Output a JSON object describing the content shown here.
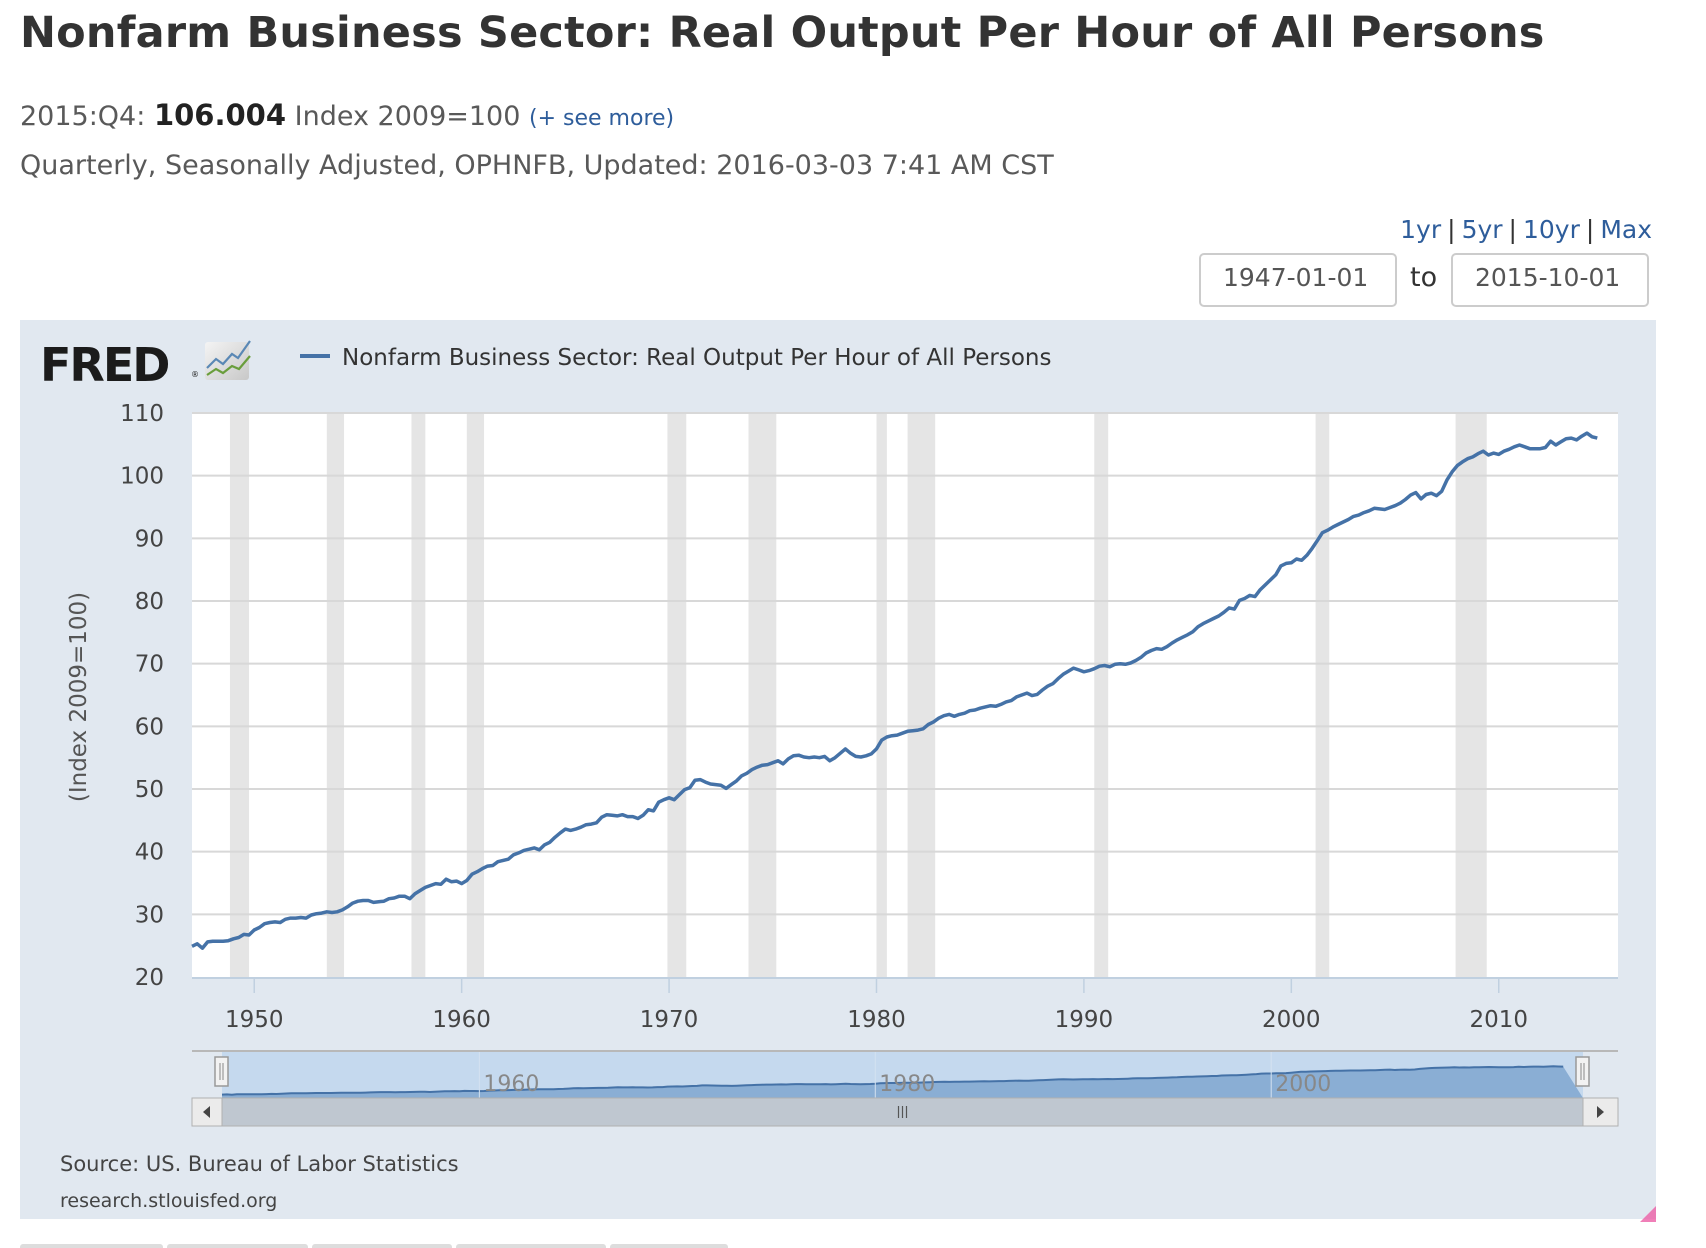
{
  "header": {
    "title": "Nonfarm Business Sector: Real Output Per Hour of All Persons",
    "period": "2015:Q4:",
    "latest_value": "106.004",
    "units": "Index 2009=100",
    "see_more": "(+ see more)",
    "meta": "Quarterly, Seasonally Adjusted, OPHNFB, Updated: 2016-03-03 7:41 AM CST"
  },
  "range_links": [
    "1yr",
    "5yr",
    "10yr",
    "Max"
  ],
  "date_range": {
    "start": "1947-01-01",
    "to_label": "to",
    "end": "2015-10-01"
  },
  "logo": {
    "text": "FRED",
    "registered": "®"
  },
  "footer": {
    "source": "Source: US. Bureau of Labor Statistics",
    "url": "research.stlouisfed.org"
  },
  "colors": {
    "series": "#4572a7",
    "panel_bg": "#e1e8f0",
    "recession": "#e5e5e5",
    "link": "#2e5d9b"
  },
  "navigator": {
    "labels": [
      "1960",
      "1980",
      "2000"
    ]
  },
  "chart_data": {
    "type": "line",
    "title": "Nonfarm Business Sector: Real Output Per Hour of All Persons",
    "legend": [
      "Nonfarm Business Sector: Real Output Per Hour of All Persons"
    ],
    "legend_position": "top-left",
    "xlabel": "",
    "ylabel": "(Index 2009=100)",
    "xlim": [
      1947.0,
      2015.75
    ],
    "ylim": [
      20,
      110
    ],
    "yticks": [
      20,
      30,
      40,
      50,
      60,
      70,
      80,
      90,
      100,
      110
    ],
    "xticks": [
      1950,
      1960,
      1970,
      1980,
      1990,
      2000,
      2010
    ],
    "grid": true,
    "recessions": [
      [
        1948.83,
        1949.75
      ],
      [
        1953.5,
        1954.33
      ],
      [
        1957.58,
        1958.25
      ],
      [
        1960.25,
        1961.08
      ],
      [
        1969.92,
        1970.83
      ],
      [
        1973.83,
        1975.17
      ],
      [
        1980.0,
        1980.5
      ],
      [
        1981.5,
        1982.83
      ],
      [
        1990.5,
        1991.17
      ],
      [
        2001.17,
        2001.83
      ],
      [
        2007.92,
        2009.42
      ]
    ],
    "series": [
      {
        "name": "Nonfarm Business Sector: Real Output Per Hour of All Persons",
        "start": "1947-01-01",
        "frequency": "quarterly",
        "values": [
          24.9,
          25.3,
          24.6,
          25.6,
          25.7,
          25.7,
          25.7,
          25.8,
          26.1,
          26.3,
          26.8,
          26.7,
          27.5,
          27.9,
          28.5,
          28.7,
          28.8,
          28.7,
          29.2,
          29.4,
          29.4,
          29.5,
          29.4,
          29.9,
          30.1,
          30.2,
          30.4,
          30.3,
          30.4,
          30.7,
          31.2,
          31.8,
          32.1,
          32.2,
          32.2,
          31.9,
          32.0,
          32.1,
          32.5,
          32.6,
          32.9,
          32.9,
          32.5,
          33.3,
          33.8,
          34.3,
          34.6,
          34.9,
          34.8,
          35.6,
          35.2,
          35.3,
          34.9,
          35.4,
          36.4,
          36.8,
          37.3,
          37.7,
          37.8,
          38.4,
          38.6,
          38.8,
          39.5,
          39.8,
          40.2,
          40.4,
          40.6,
          40.3,
          41.1,
          41.5,
          42.3,
          43.0,
          43.6,
          43.4,
          43.6,
          43.9,
          44.3,
          44.4,
          44.6,
          45.5,
          45.9,
          45.8,
          45.7,
          45.9,
          45.6,
          45.6,
          45.3,
          45.8,
          46.7,
          46.5,
          47.9,
          48.3,
          48.6,
          48.3,
          49.1,
          49.9,
          50.2,
          51.4,
          51.5,
          51.1,
          50.8,
          50.7,
          50.6,
          50.1,
          50.7,
          51.3,
          52.1,
          52.5,
          53.1,
          53.5,
          53.8,
          53.9,
          54.2,
          54.5,
          54.0,
          54.8,
          55.3,
          55.4,
          55.1,
          55.0,
          55.1,
          55.0,
          55.2,
          54.5,
          55.0,
          55.7,
          56.4,
          55.7,
          55.2,
          55.1,
          55.3,
          55.6,
          56.4,
          57.8,
          58.3,
          58.5,
          58.6,
          58.9,
          59.2,
          59.3,
          59.4,
          59.6,
          60.3,
          60.7,
          61.3,
          61.7,
          61.9,
          61.6,
          61.9,
          62.1,
          62.5,
          62.6,
          62.9,
          63.1,
          63.3,
          63.2,
          63.5,
          63.9,
          64.1,
          64.7,
          65.0,
          65.3,
          64.9,
          65.1,
          65.8,
          66.4,
          66.8,
          67.6,
          68.3,
          68.8,
          69.3,
          69.0,
          68.7,
          68.9,
          69.2,
          69.6,
          69.7,
          69.5,
          69.9,
          70.0,
          69.9,
          70.1,
          70.5,
          71.0,
          71.7,
          72.1,
          72.4,
          72.3,
          72.7,
          73.3,
          73.8,
          74.2,
          74.6,
          75.1,
          75.9,
          76.4,
          76.8,
          77.2,
          77.6,
          78.2,
          78.9,
          78.7,
          80.1,
          80.4,
          80.9,
          80.7,
          81.8,
          82.6,
          83.4,
          84.2,
          85.6,
          86.0,
          86.1,
          86.7,
          86.5,
          87.3,
          88.4,
          89.6,
          90.9,
          91.3,
          91.8,
          92.2,
          92.6,
          93.0,
          93.5,
          93.7,
          94.1,
          94.4,
          94.8,
          94.7,
          94.6,
          94.9,
          95.2,
          95.6,
          96.2,
          96.9,
          97.3,
          96.3,
          97.0,
          97.2,
          96.8,
          97.5,
          99.3,
          100.6,
          101.6,
          102.2,
          102.7,
          103.0,
          103.5,
          103.9,
          103.3,
          103.6,
          103.4,
          103.9,
          104.2,
          104.6,
          104.9,
          104.6,
          104.3,
          104.3,
          104.3,
          104.5,
          105.5,
          104.9,
          105.4,
          105.9,
          106.0,
          105.7,
          106.3,
          106.8,
          106.2,
          106.0
        ]
      }
    ]
  }
}
